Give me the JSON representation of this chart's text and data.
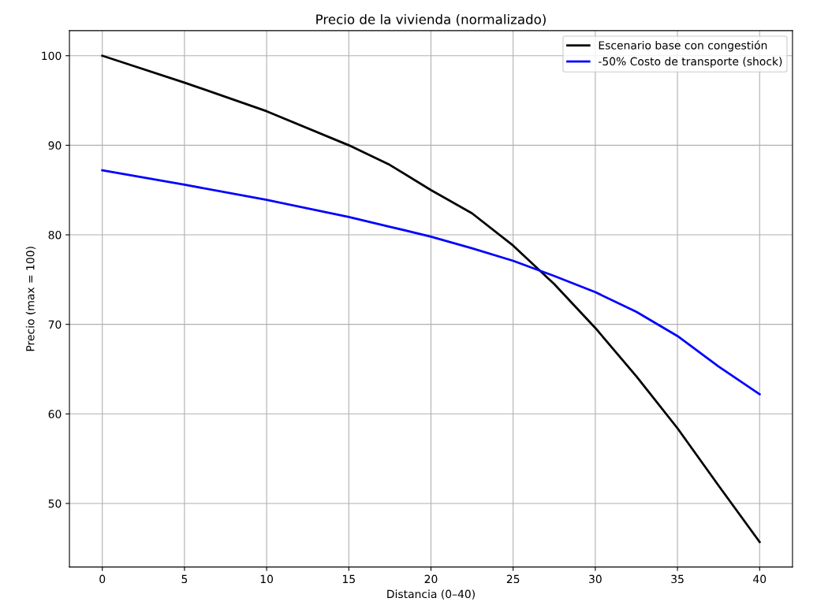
{
  "chart_data": {
    "type": "line",
    "title": "Precio de la vivienda (normalizado)",
    "xlabel": "Distancia (0–40)",
    "ylabel": "Precio (max = 100)",
    "x": [
      0,
      5,
      10,
      15,
      17.5,
      20,
      22.5,
      25,
      27.5,
      30,
      32.5,
      35,
      37.5,
      40
    ],
    "series": [
      {
        "name": "Escenario base con congestión",
        "color": "#000000",
        "values": [
          100,
          97.0,
          93.8,
          90.0,
          87.8,
          85.0,
          82.4,
          78.8,
          74.5,
          69.6,
          64.2,
          58.4,
          52.0,
          45.7
        ]
      },
      {
        "name": "-50% Costo de transporte (shock)",
        "color": "#0000ff",
        "values": [
          87.2,
          85.6,
          83.9,
          82.0,
          80.9,
          79.8,
          78.5,
          77.1,
          75.4,
          73.6,
          71.4,
          68.7,
          65.3,
          62.2
        ]
      }
    ],
    "xlim": [
      -2,
      42
    ],
    "xticks": [
      0,
      5,
      10,
      15,
      20,
      25,
      30,
      35,
      40
    ],
    "ylim": [
      42.9,
      102.8
    ],
    "yticks": [
      50,
      60,
      70,
      80,
      90,
      100
    ],
    "grid": true,
    "legend": "top right",
    "marker": "none",
    "line_style": "solid"
  }
}
